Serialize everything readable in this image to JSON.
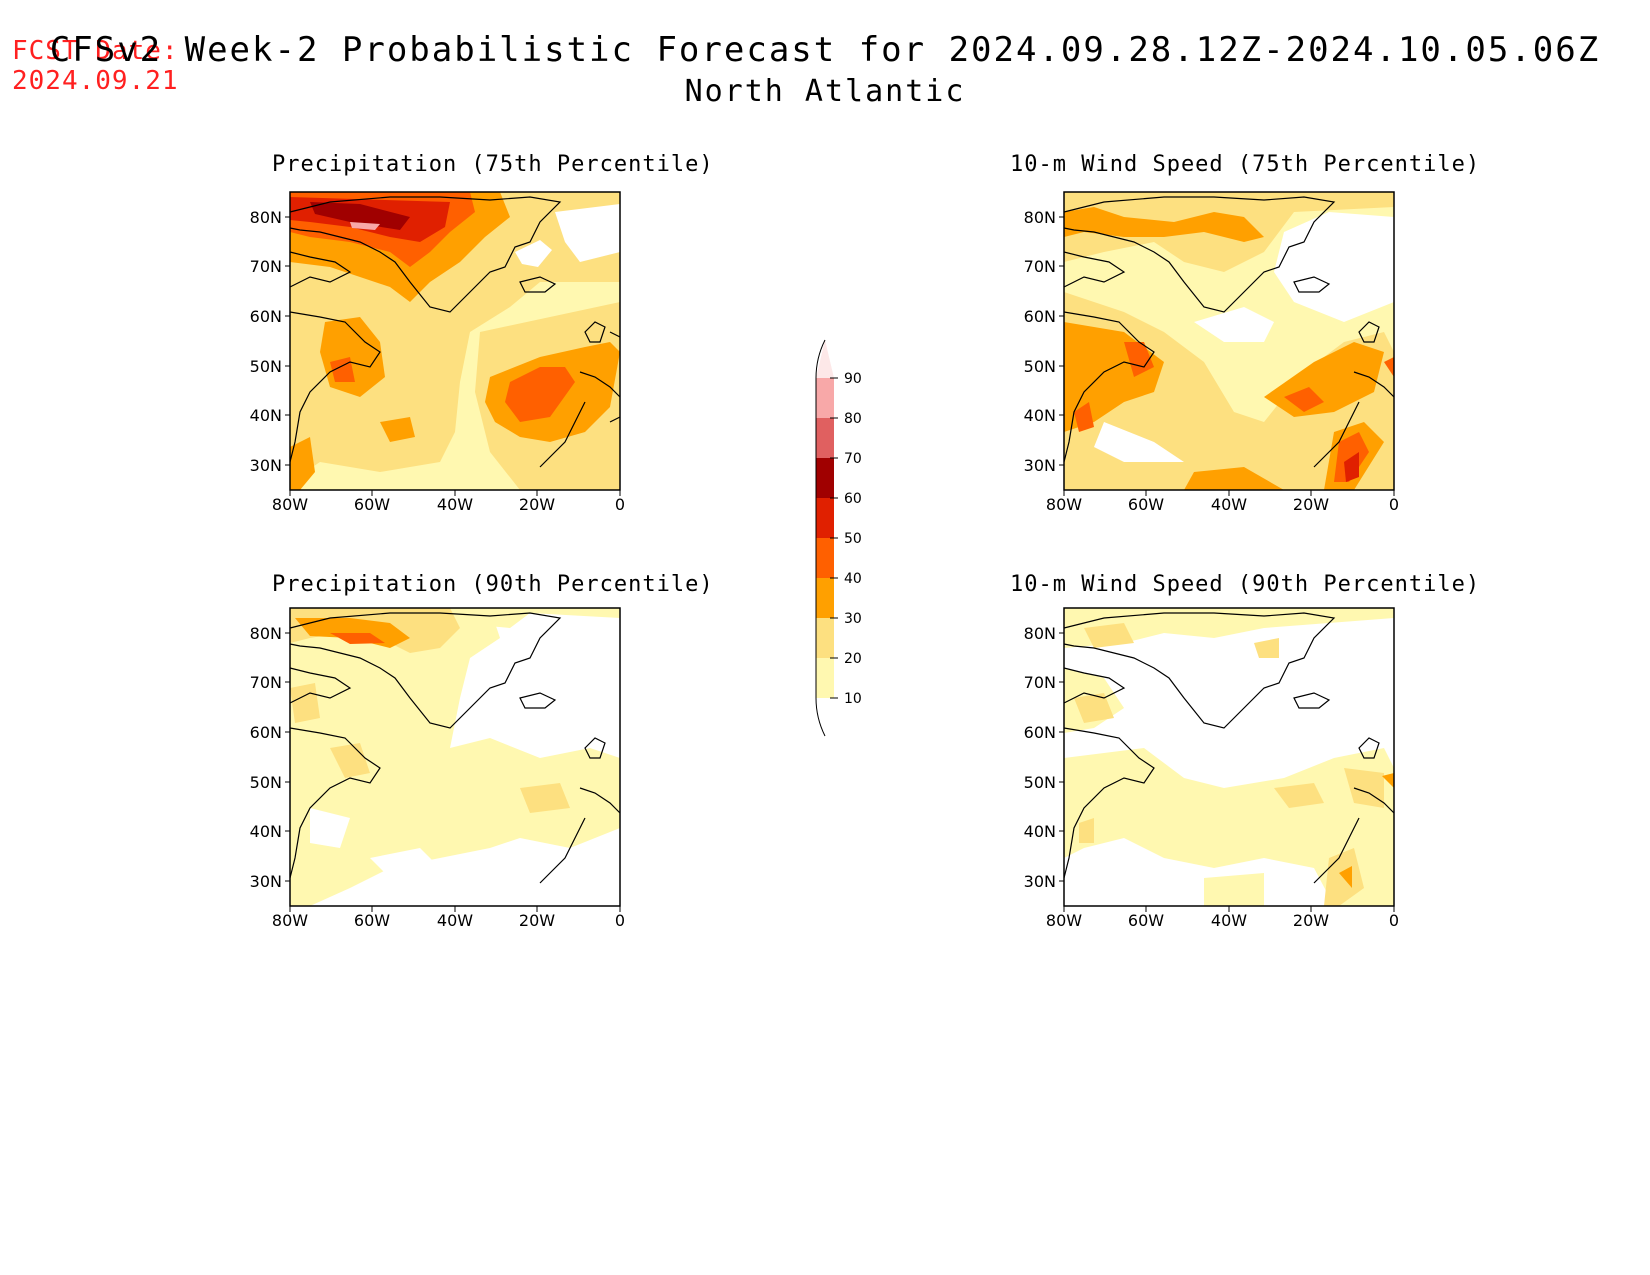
{
  "header": {
    "fcst_label": "FCST Date:",
    "fcst_date": "2024.09.21",
    "title": "CFSv2 Week-2 Probabilistic Forecast for 2024.09.28.12Z-2024.10.05.06Z",
    "subtitle": "North Atlantic"
  },
  "panels": [
    {
      "title": "Precipitation (75th Percentile)"
    },
    {
      "title": "10-m Wind Speed (75th Percentile)"
    },
    {
      "title": "Precipitation (90th Percentile)"
    },
    {
      "title": "10-m Wind Speed (90th Percentile)"
    }
  ],
  "axes": {
    "lat_labels": [
      "80N",
      "70N",
      "60N",
      "50N",
      "40N",
      "30N"
    ],
    "lon_labels": [
      "80W",
      "60W",
      "40W",
      "20W",
      "0"
    ]
  },
  "colorbar": {
    "labels": [
      "90",
      "80",
      "70",
      "60",
      "50",
      "40",
      "30",
      "20",
      "10"
    ],
    "colors": [
      "#f8a8a8",
      "#e06060",
      "#a00000",
      "#e02000",
      "#ff6000",
      "#ffa000",
      "#fde080",
      "#fff8b0"
    ]
  },
  "map_fill_colors": {
    "c10_20": "#fff8b0",
    "c20_30": "#fde080",
    "c30_40": "#ffa000",
    "c40_50": "#ff6000",
    "c50_60": "#e02000",
    "c60_70": "#a00000",
    "c80_90": "#f8a8a8"
  }
}
